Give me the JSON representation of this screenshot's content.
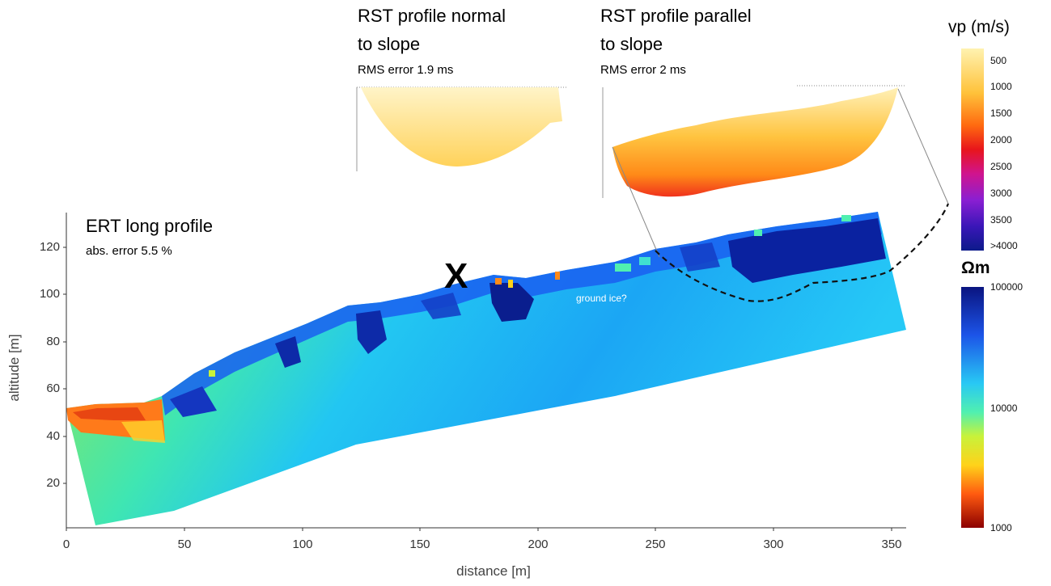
{
  "ert": {
    "title": "ERT long profile",
    "error": "abs. error 5.5 %",
    "annotation": "ground ice?",
    "marker": "X",
    "x_axis": {
      "label": "distance [m]",
      "ticks": [
        "0",
        "50",
        "100",
        "150",
        "200",
        "250",
        "300",
        "350"
      ]
    },
    "y_axis": {
      "label": "altitude [m]",
      "ticks": [
        "20",
        "40",
        "60",
        "80",
        "100",
        "120"
      ]
    }
  },
  "rst_normal": {
    "title_line1": "RST profile normal",
    "title_line2": "to slope",
    "error": "RMS error 1.9 ms"
  },
  "rst_parallel": {
    "title_line1": "RST profile parallel",
    "title_line2": "to slope",
    "error": "RMS error 2 ms"
  },
  "vp_colorbar": {
    "title": "vp (m/s)",
    "ticks": [
      "500",
      "1000",
      "1500",
      "2000",
      "2500",
      "3000",
      "3500",
      ">4000"
    ]
  },
  "ohm_colorbar": {
    "title": "Ωm",
    "ticks": [
      "100000",
      "10000",
      "1000"
    ]
  },
  "colors": {
    "ice": "#0a2fb4",
    "frozen": "#1976ff",
    "unfrozen": "#33d0ff",
    "warm": "#ff6a00"
  }
}
